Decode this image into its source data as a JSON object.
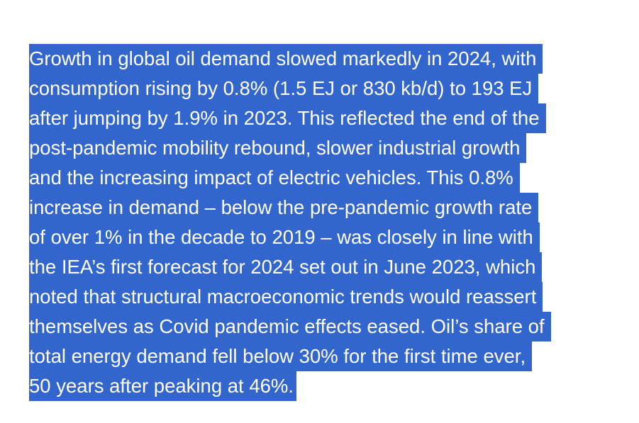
{
  "paragraph": {
    "lines": [
      "Growth in global oil demand slowed markedly in 2024, with",
      "consumption rising by 0.8% (1.5 EJ or 830 kb/d) to 193 EJ",
      "after jumping by 1.9% in 2023. This reflected the end of the",
      "post-pandemic mobility rebound, slower industrial growth",
      "and the increasing impact of electric vehicles. This 0.8%",
      "increase in demand – below the pre-pandemic growth rate",
      "of over 1% in the decade to 2019 – was closely in line with",
      "the IEA’s first forecast for 2024 set out in June 2023, which",
      "noted that structural macroeconomic trends would reassert",
      "themselves as Covid pandemic effects eased. Oil’s share of",
      "total energy demand fell below 30% for the first time ever,",
      "50 years after peaking at 46%."
    ]
  },
  "colors": {
    "highlight": "#3366cc",
    "text": "#ffffff",
    "background": "#ffffff"
  }
}
